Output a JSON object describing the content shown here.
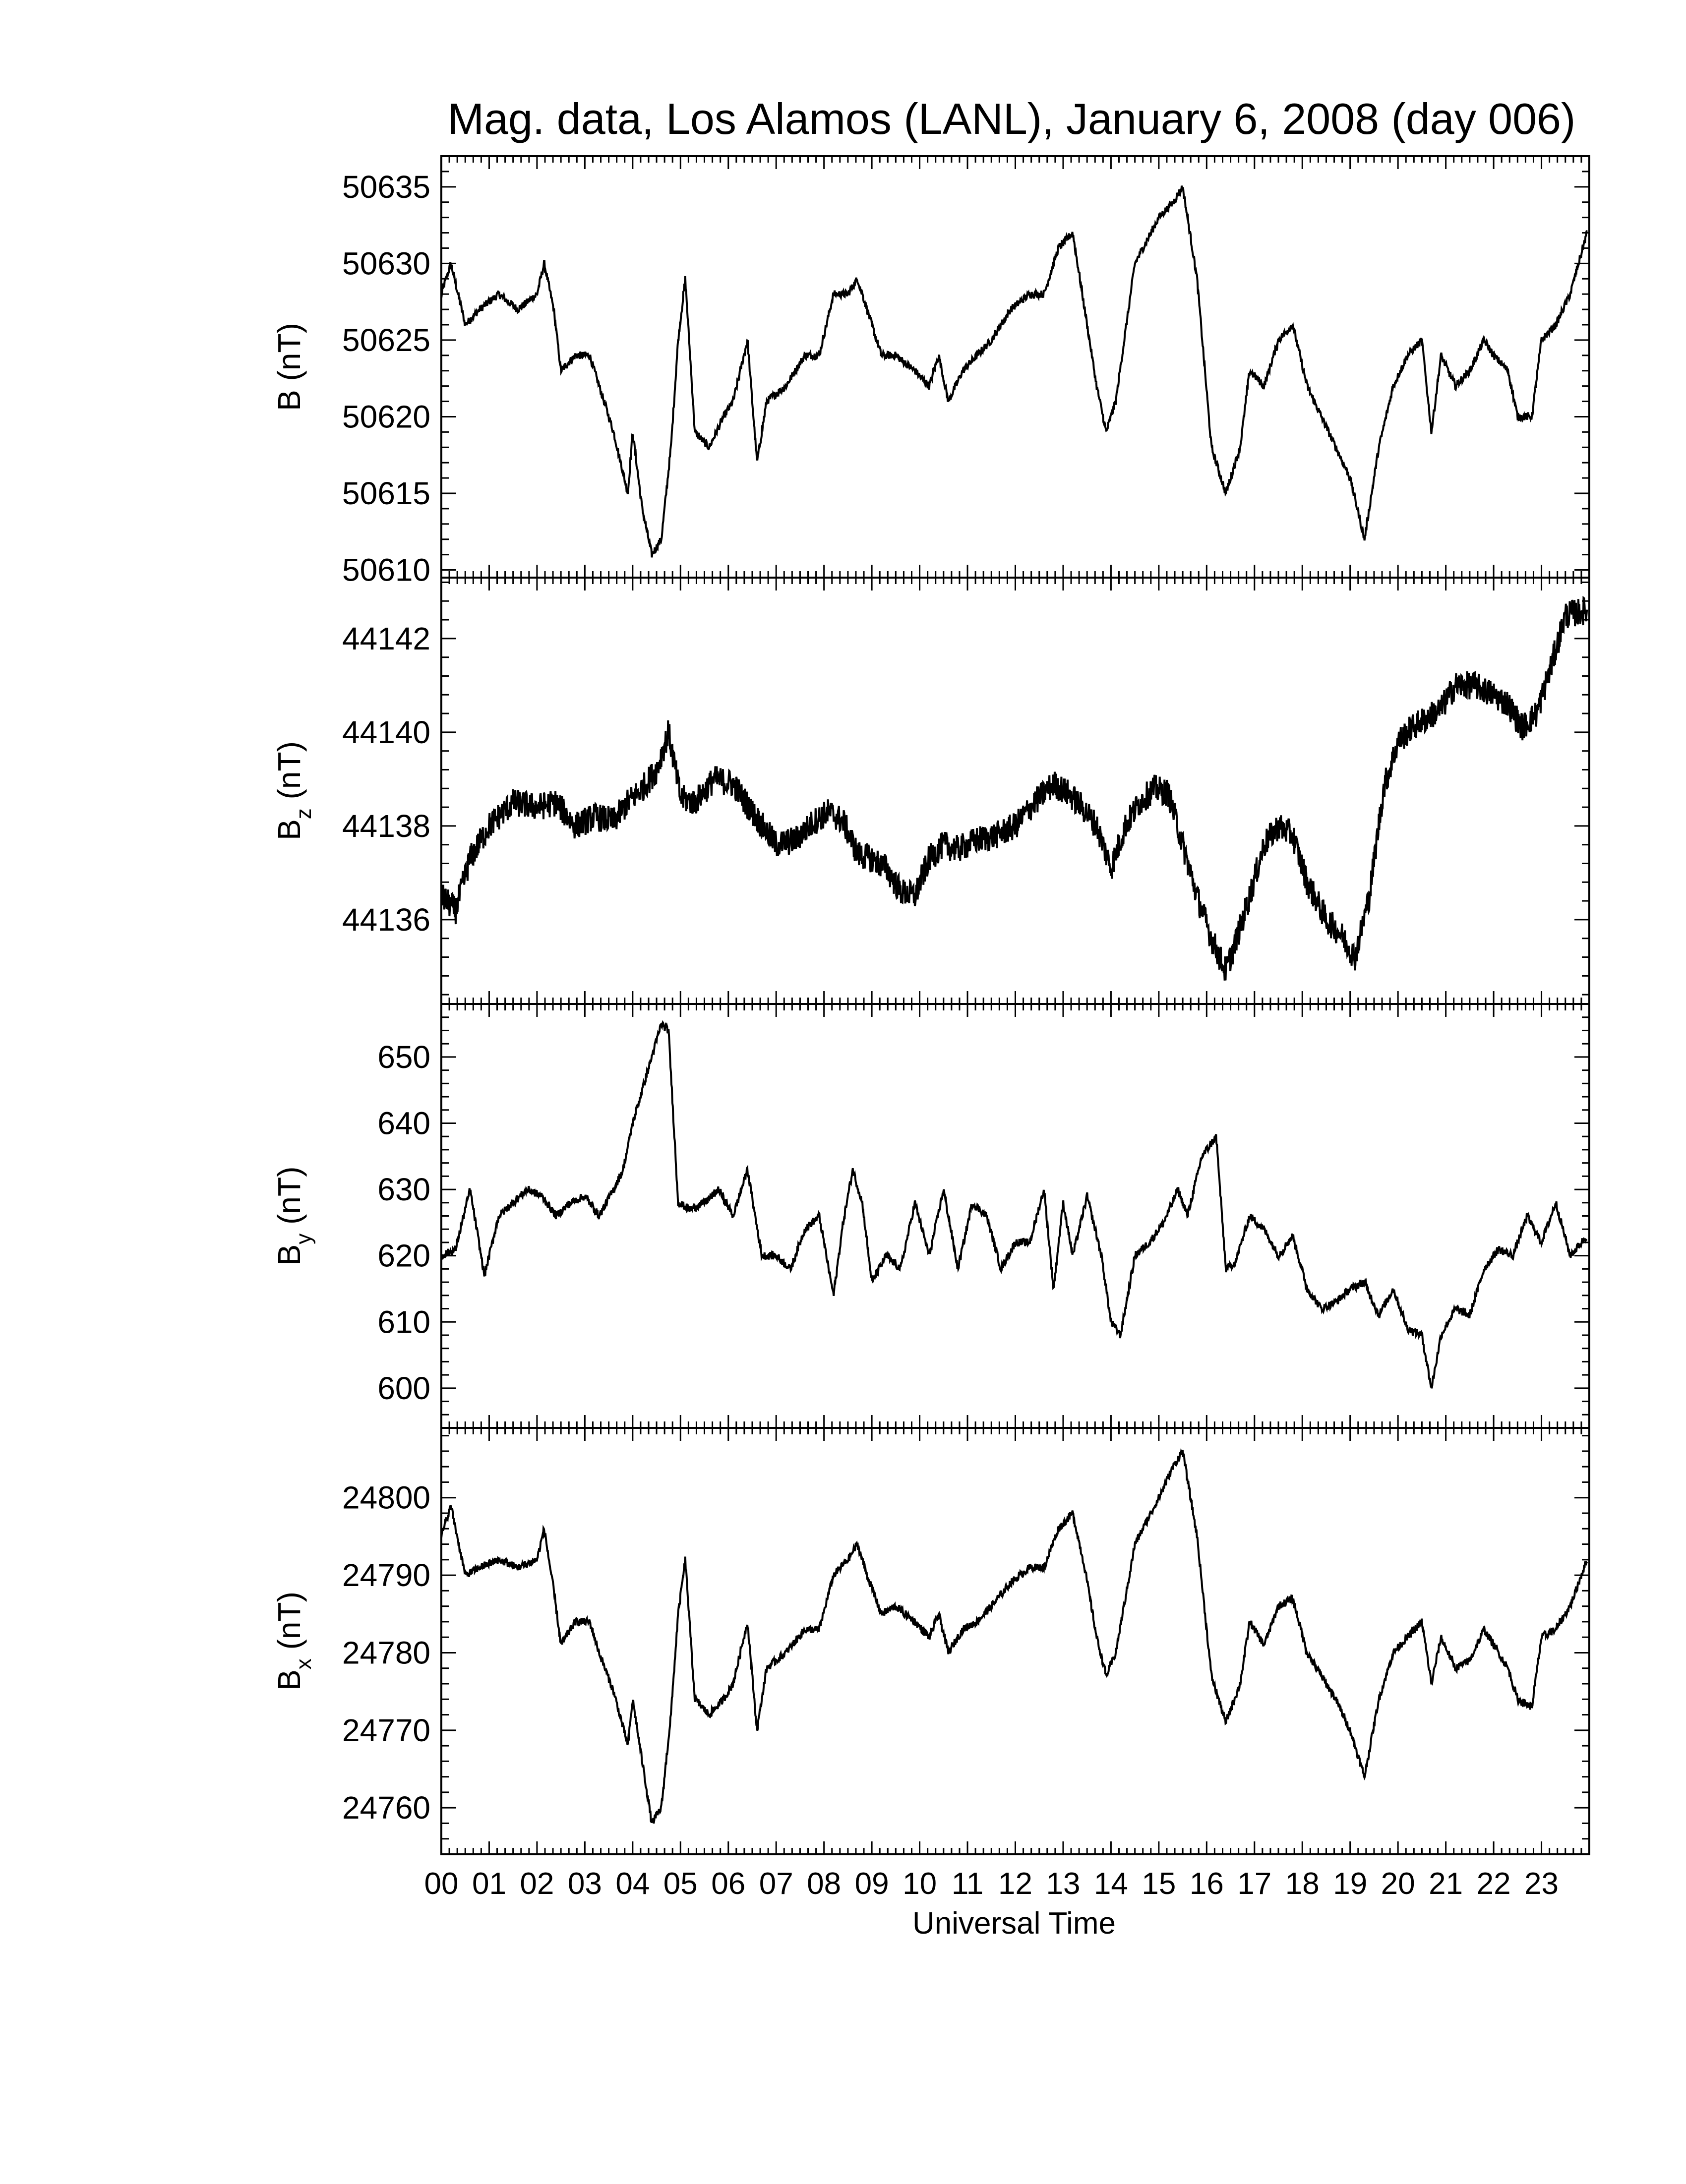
{
  "title": "Mag. data, Los Alamos (LANL), January 6, 2008 (day 006)",
  "xlabel": "Universal Time",
  "x_ticks": [
    "00",
    "01",
    "02",
    "03",
    "04",
    "05",
    "06",
    "07",
    "08",
    "09",
    "10",
    "11",
    "12",
    "13",
    "14",
    "15",
    "16",
    "17",
    "18",
    "19",
    "20",
    "21",
    "22",
    "23"
  ],
  "line_color": "#000000",
  "chart_data": [
    {
      "type": "line",
      "id": "B",
      "ylabel_main": "B",
      "ylabel_sub": "",
      "ylabel_unit": "(nT)",
      "ylim": [
        50609.5,
        50637
      ],
      "y_ticks": [
        50610,
        50615,
        50620,
        50625,
        50630,
        50635
      ],
      "noise": 0.25,
      "x": [
        0,
        0.2,
        0.5,
        0.8,
        1.2,
        1.6,
        2.0,
        2.15,
        2.35,
        2.5,
        2.8,
        3.1,
        3.3,
        3.6,
        3.9,
        4.0,
        4.2,
        4.4,
        4.6,
        4.8,
        4.95,
        5.1,
        5.3,
        5.6,
        5.9,
        6.1,
        6.4,
        6.6,
        6.8,
        7.2,
        7.6,
        7.9,
        8.2,
        8.5,
        8.7,
        8.9,
        9.2,
        9.5,
        9.9,
        10.2,
        10.4,
        10.6,
        10.9,
        11.2,
        11.5,
        11.9,
        12.3,
        12.6,
        12.9,
        13.2,
        13.45,
        13.7,
        13.9,
        14.1,
        14.5,
        15.0,
        15.3,
        15.5,
        15.8,
        16.1,
        16.4,
        16.7,
        16.9,
        17.2,
        17.5,
        17.8,
        18.1,
        18.4,
        18.7,
        19.0,
        19.3,
        19.6,
        19.9,
        20.2,
        20.5,
        20.7,
        20.9,
        21.2,
        21.5,
        21.8,
        22.0,
        22.3,
        22.5,
        22.8,
        23.0,
        23.3,
        23.6,
        23.95
      ],
      "y": [
        50628,
        50630,
        50626,
        50627,
        50628,
        50627,
        50628,
        50630,
        50627,
        50623,
        50624,
        50624,
        50622,
        50619,
        50615,
        50619,
        50614,
        50611,
        50612,
        50618,
        50625,
        50629,
        50619,
        50618,
        50620,
        50621,
        50625,
        50617,
        50621,
        50622,
        50624,
        50624,
        50628,
        50628,
        50629,
        50627,
        50624,
        50624,
        50623,
        50622,
        50624,
        50621,
        50623,
        50624,
        50625,
        50627,
        50628,
        50628,
        50631,
        50632,
        50627,
        50622,
        50619,
        50621,
        50630,
        50633,
        50634,
        50635,
        50629,
        50618,
        50615,
        50618,
        50623,
        50622,
        50625,
        50626,
        50622,
        50620,
        50618,
        50616,
        50612,
        50618,
        50622,
        50624,
        50625,
        50619,
        50624,
        50622,
        50623,
        50625,
        50624,
        50623,
        50620,
        50620,
        50625,
        50626,
        50628,
        50632
      ]
    },
    {
      "type": "line",
      "id": "Bz",
      "ylabel_main": "B",
      "ylabel_sub": "z",
      "ylabel_unit": "(nT)",
      "ylim": [
        44134.2,
        44143.3
      ],
      "y_ticks": [
        44136,
        44138,
        44140,
        44142
      ],
      "noise": 0.3,
      "x": [
        0,
        0.3,
        0.6,
        1.0,
        1.5,
        2.0,
        2.4,
        2.8,
        3.2,
        3.6,
        3.9,
        4.2,
        4.5,
        4.75,
        5.0,
        5.3,
        5.7,
        6.1,
        6.5,
        7.0,
        7.4,
        7.8,
        8.1,
        8.4,
        8.7,
        9.0,
        9.3,
        9.6,
        9.9,
        10.2,
        10.5,
        10.8,
        11.2,
        11.6,
        12.0,
        12.4,
        12.8,
        13.1,
        13.4,
        13.7,
        14.0,
        14.3,
        14.6,
        14.9,
        15.2,
        15.5,
        15.8,
        16.1,
        16.4,
        16.6,
        16.9,
        17.2,
        17.5,
        17.8,
        18.1,
        18.5,
        18.8,
        19.1,
        19.4,
        19.7,
        20.0,
        20.3,
        20.6,
        20.9,
        21.2,
        21.6,
        22.0,
        22.3,
        22.6,
        22.9,
        23.2,
        23.5,
        23.95
      ],
      "y": [
        44136.5,
        44136.2,
        44137.3,
        44138,
        44138.5,
        44138.4,
        44138.5,
        44138,
        44138.2,
        44138.1,
        44138.5,
        44138.8,
        44139.2,
        44140,
        44138.6,
        44138.5,
        44139,
        44138.9,
        44138.3,
        44137.6,
        44137.7,
        44138.1,
        44138.3,
        44138.1,
        44137.4,
        44137.3,
        44137.1,
        44136.6,
        44136.5,
        44137.3,
        44137.6,
        44137.5,
        44137.7,
        44137.8,
        44138.0,
        44138.5,
        44138.9,
        44138.7,
        44138.4,
        44138.0,
        44137.1,
        44138.0,
        44138.5,
        44138.8,
        44138.7,
        44137.6,
        44136.5,
        44135.6,
        44134.9,
        44135.5,
        44136.5,
        44137.6,
        44138.0,
        44137.8,
        44136.8,
        44136.0,
        44135.7,
        44135.2,
        44136.5,
        44138.8,
        44139.8,
        44140.1,
        44140.3,
        44140.5,
        44141.0,
        44141.0,
        44140.8,
        44140.6,
        44140.1,
        44140.4,
        44141.4,
        44142.5,
        44142.6
      ]
    },
    {
      "type": "line",
      "id": "By",
      "ylabel_main": "B",
      "ylabel_sub": "y",
      "ylabel_unit": "(nT)",
      "ylim": [
        594,
        658
      ],
      "y_ticks": [
        600,
        610,
        620,
        630,
        640,
        650
      ],
      "noise": 0.6,
      "x": [
        0,
        0.3,
        0.6,
        0.9,
        1.2,
        1.5,
        1.8,
        2.1,
        2.4,
        2.7,
        3.0,
        3.3,
        3.6,
        3.8,
        4.0,
        4.2,
        4.4,
        4.6,
        4.75,
        4.95,
        5.2,
        5.5,
        5.8,
        6.1,
        6.4,
        6.7,
        7.0,
        7.3,
        7.6,
        7.9,
        8.2,
        8.4,
        8.6,
        8.8,
        9.0,
        9.3,
        9.6,
        9.9,
        10.2,
        10.5,
        10.8,
        11.1,
        11.4,
        11.7,
        12.0,
        12.3,
        12.6,
        12.8,
        13.0,
        13.2,
        13.5,
        13.8,
        14.0,
        14.2,
        14.5,
        14.8,
        15.1,
        15.4,
        15.6,
        15.9,
        16.2,
        16.4,
        16.6,
        16.9,
        17.2,
        17.5,
        17.8,
        18.1,
        18.4,
        18.7,
        19.0,
        19.3,
        19.6,
        19.9,
        20.2,
        20.5,
        20.7,
        20.9,
        21.2,
        21.5,
        21.8,
        22.1,
        22.4,
        22.7,
        23.0,
        23.3,
        23.6,
        23.95
      ],
      "y": [
        620,
        621,
        630,
        617,
        626,
        628,
        630,
        629,
        626,
        628,
        629,
        626,
        630,
        633,
        640,
        645,
        650,
        655,
        654,
        628,
        627,
        628,
        630,
        626,
        633,
        620,
        620,
        618,
        624,
        626,
        614,
        625,
        633,
        628,
        616,
        620,
        618,
        628,
        620,
        630,
        618,
        628,
        626,
        618,
        622,
        622,
        630,
        615,
        628,
        620,
        629,
        620,
        610,
        608,
        620,
        622,
        625,
        630,
        626,
        635,
        638,
        618,
        619,
        626,
        624,
        620,
        623,
        615,
        612,
        613,
        615,
        616,
        611,
        615,
        609,
        608,
        600,
        608,
        612,
        611,
        618,
        621,
        620,
        626,
        622,
        628,
        620,
        623
      ]
    },
    {
      "type": "line",
      "id": "Bx",
      "ylabel_main": "B",
      "ylabel_sub": "x",
      "ylabel_unit": "(nT)",
      "ylim": [
        24754,
        24809
      ],
      "y_ticks": [
        24760,
        24770,
        24780,
        24790,
        24800
      ],
      "noise": 0.5,
      "x": [
        0,
        0.2,
        0.5,
        0.8,
        1.2,
        1.6,
        2.0,
        2.15,
        2.35,
        2.5,
        2.8,
        3.1,
        3.3,
        3.6,
        3.9,
        4.0,
        4.2,
        4.4,
        4.6,
        4.8,
        4.95,
        5.1,
        5.3,
        5.6,
        5.9,
        6.1,
        6.4,
        6.6,
        6.8,
        7.2,
        7.6,
        7.9,
        8.2,
        8.5,
        8.7,
        8.9,
        9.2,
        9.5,
        9.9,
        10.2,
        10.4,
        10.6,
        10.9,
        11.2,
        11.5,
        11.9,
        12.3,
        12.6,
        12.9,
        13.2,
        13.45,
        13.7,
        13.9,
        14.1,
        14.5,
        15.0,
        15.3,
        15.5,
        15.8,
        16.1,
        16.4,
        16.7,
        16.9,
        17.2,
        17.5,
        17.8,
        18.1,
        18.4,
        18.7,
        19.0,
        19.3,
        19.6,
        19.9,
        20.2,
        20.5,
        20.7,
        20.9,
        21.2,
        21.5,
        21.8,
        22.0,
        22.3,
        22.5,
        22.8,
        23.0,
        23.3,
        23.6,
        23.95
      ],
      "y": [
        24795,
        24799,
        24790,
        24791,
        24792,
        24791,
        24792,
        24796,
        24788,
        24781,
        24784,
        24784,
        24780,
        24775,
        24768,
        24774,
        24766,
        24758,
        24760,
        24772,
        24785,
        24792,
        24774,
        24772,
        24774,
        24776,
        24784,
        24770,
        24778,
        24780,
        24783,
        24783,
        24790,
        24792,
        24794,
        24790,
        24785,
        24786,
        24784,
        24782,
        24785,
        24780,
        24783,
        24784,
        24786,
        24789,
        24791,
        24791,
        24796,
        24798,
        24791,
        24782,
        24777,
        24780,
        24794,
        24800,
        24804,
        24806,
        24795,
        24777,
        24771,
        24776,
        24784,
        24781,
        24786,
        24787,
        24780,
        24777,
        24774,
        24770,
        24764,
        24774,
        24780,
        24782,
        24784,
        24776,
        24782,
        24778,
        24779,
        24783,
        24781,
        24778,
        24774,
        24773,
        24782,
        24783,
        24786,
        24792
      ]
    }
  ]
}
